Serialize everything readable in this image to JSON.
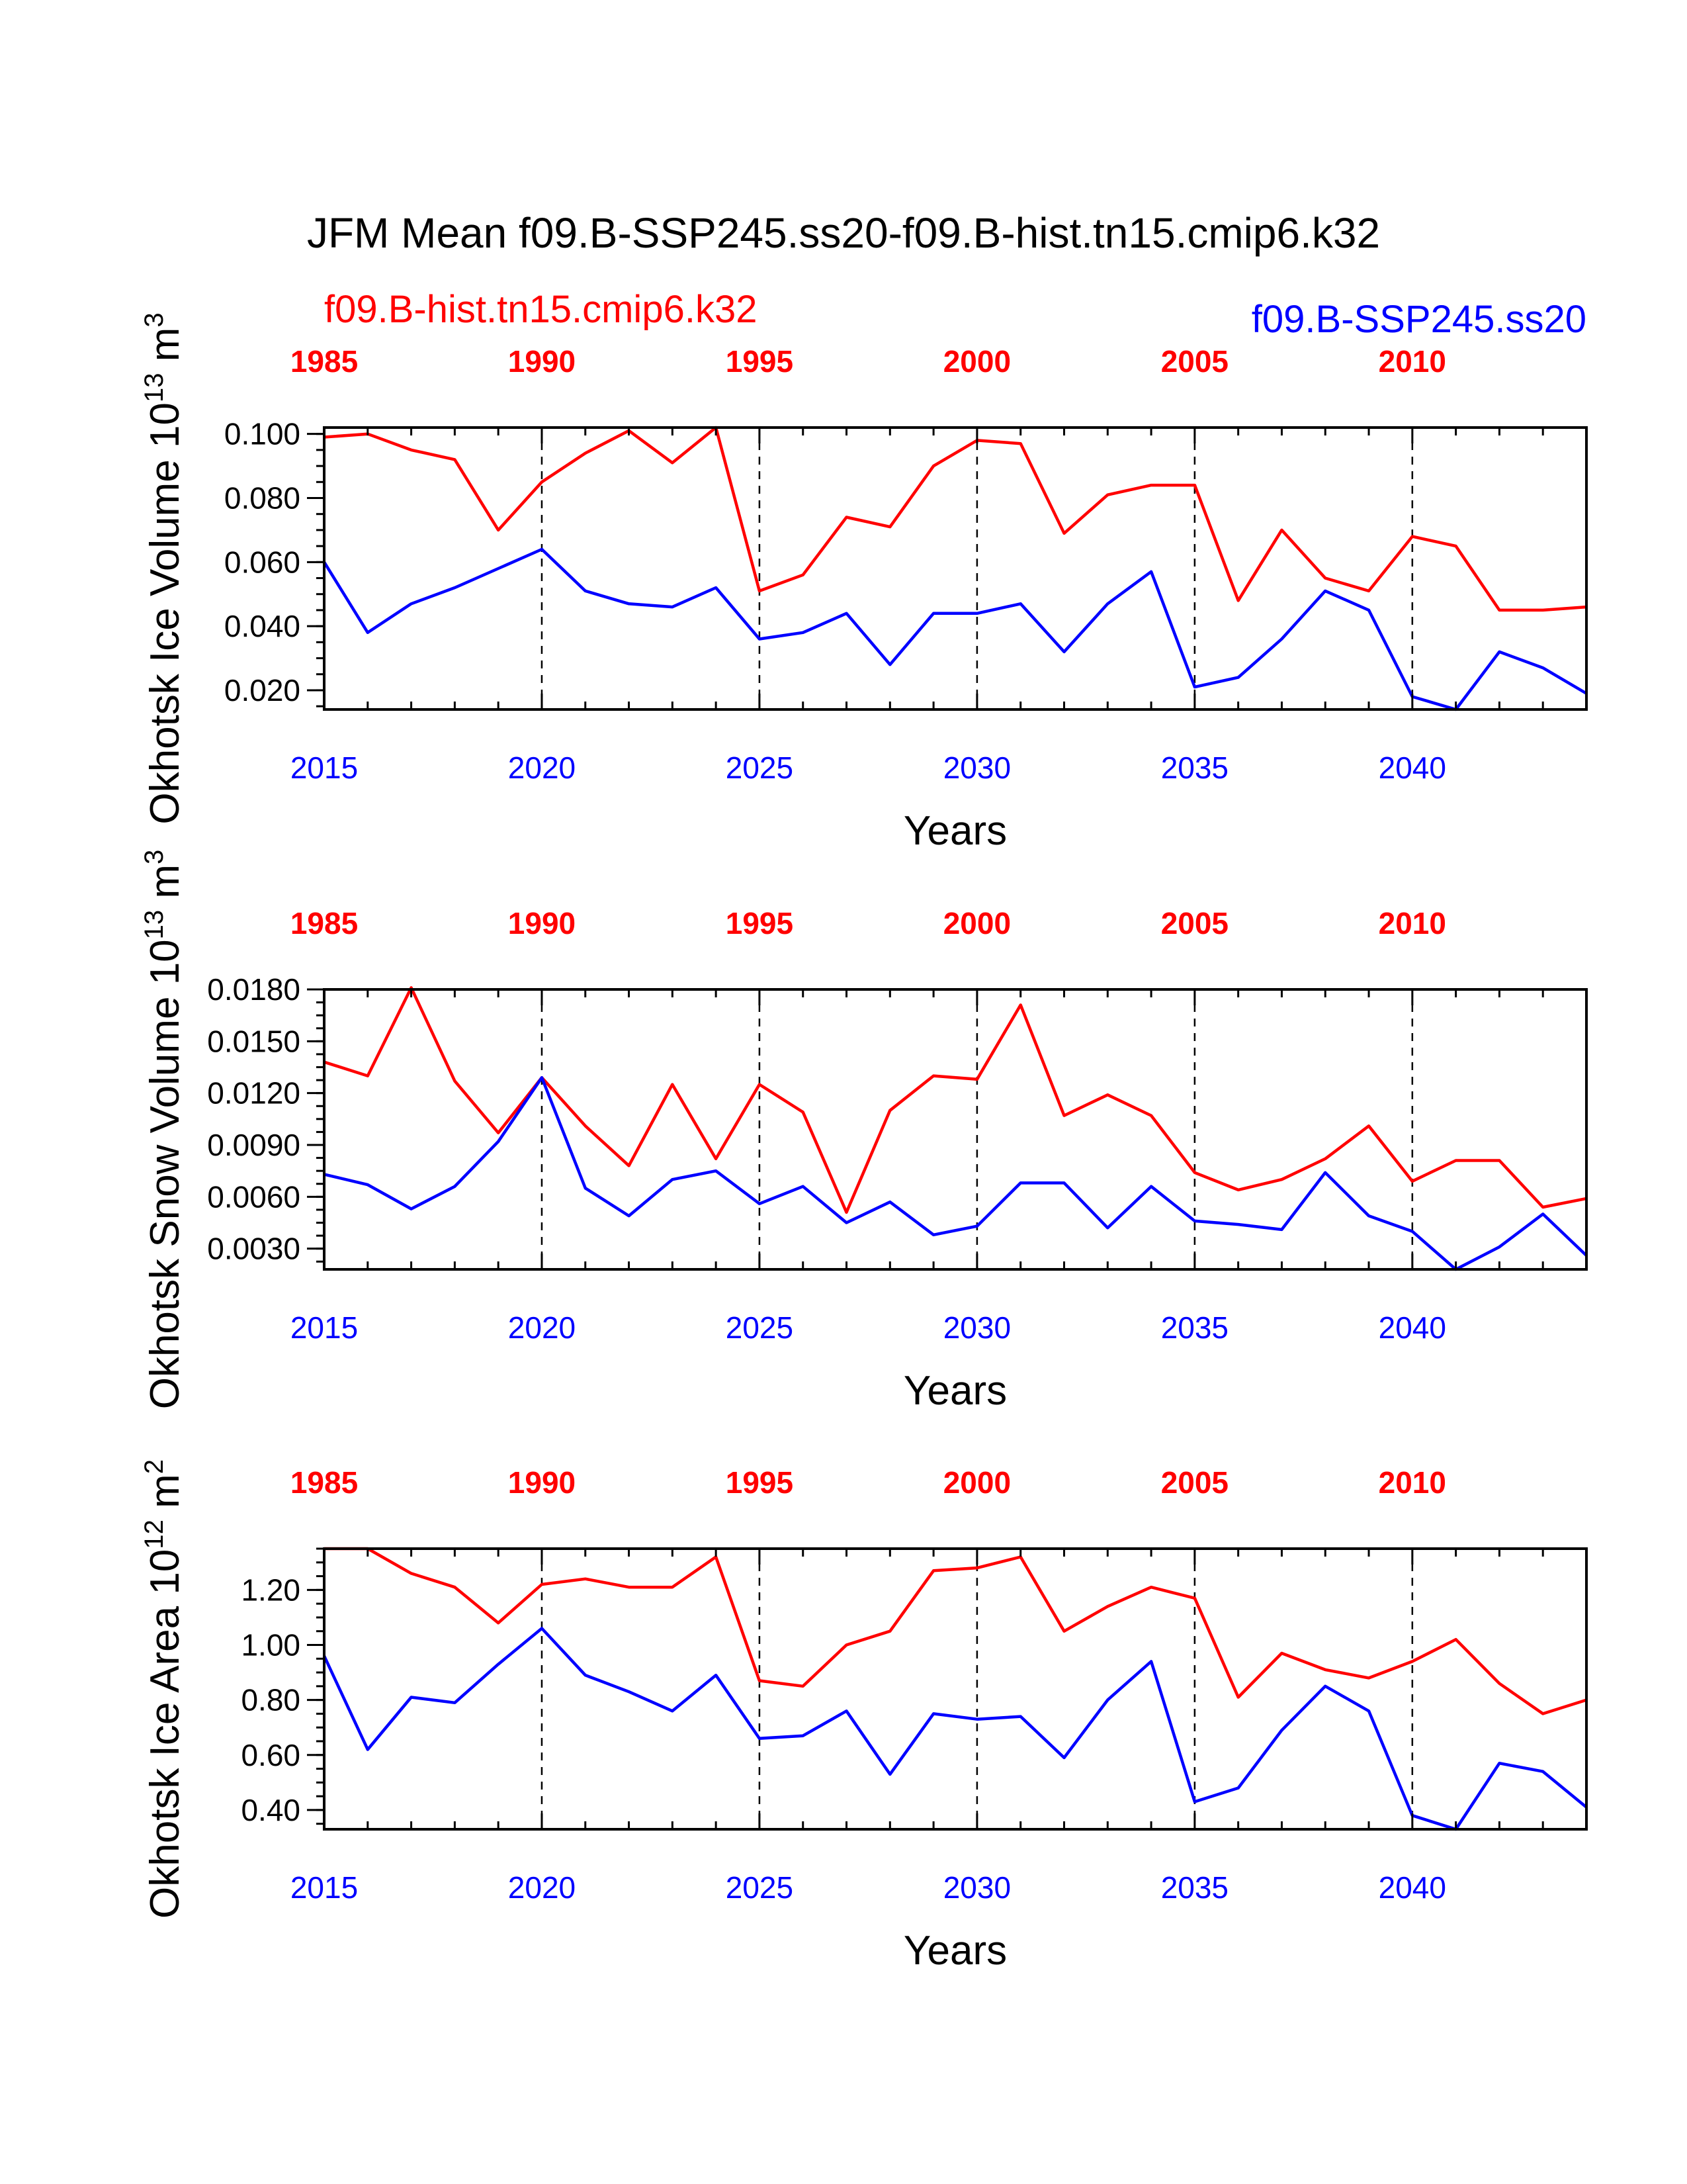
{
  "page_title": "JFM Mean f09.B-SSP245.ss20-f09.B-hist.tn15.cmip6.k32",
  "legend": {
    "hist_label": "f09.B-hist.tn15.cmip6.k32",
    "ssp_label": "f09.B-SSP245.ss20"
  },
  "colors": {
    "hist": "#ff0000",
    "ssp": "#0000ff",
    "axis": "#000000"
  },
  "chart_data": [
    {
      "type": "line",
      "ylabel": "Okhotsk Ice Volume 10^13 m^3",
      "ylabel_base": "Okhotsk Ice Volume 10",
      "ylabel_exp": "13",
      "ylabel_unit": " m",
      "ylabel_unit_exp": "3",
      "xlabel": "Years",
      "bottom_ticks": [
        "2015",
        "2020",
        "2025",
        "2030",
        "2035",
        "2040"
      ],
      "top_ticks": [
        "1985",
        "1990",
        "1995",
        "2000",
        "2005",
        "2010"
      ],
      "xlim": [
        2015,
        2044
      ],
      "ylim": [
        0.014,
        0.102
      ],
      "yticks": [
        0.02,
        0.04,
        0.06,
        0.08,
        0.1
      ],
      "ytick_labels": [
        "0.020",
        "0.040",
        "0.060",
        "0.080",
        "0.100"
      ],
      "x": [
        2015,
        2016,
        2017,
        2018,
        2019,
        2020,
        2021,
        2022,
        2023,
        2024,
        2025,
        2026,
        2027,
        2028,
        2029,
        2030,
        2031,
        2032,
        2033,
        2034,
        2035,
        2036,
        2037,
        2038,
        2039,
        2040,
        2041,
        2042,
        2043,
        2044
      ],
      "series": [
        {
          "name": "f09.B-hist.tn15.cmip6.k32",
          "color": "#ff0000",
          "values": [
            0.099,
            0.1,
            0.095,
            0.092,
            0.07,
            0.085,
            0.094,
            0.101,
            0.091,
            0.102,
            0.051,
            0.056,
            0.074,
            0.071,
            0.09,
            0.098,
            0.097,
            0.069,
            0.081,
            0.084,
            0.084,
            0.048,
            0.07,
            0.055,
            0.051,
            0.068,
            0.065,
            0.045,
            0.045,
            0.046
          ]
        },
        {
          "name": "f09.B-SSP245.ss20",
          "color": "#0000ff",
          "values": [
            0.06,
            0.038,
            0.047,
            0.052,
            0.058,
            0.064,
            0.051,
            0.047,
            0.046,
            0.052,
            0.036,
            0.038,
            0.044,
            0.028,
            0.044,
            0.044,
            0.047,
            0.032,
            0.047,
            0.057,
            0.021,
            0.024,
            0.036,
            0.051,
            0.045,
            0.018,
            0.014,
            0.032,
            0.027,
            0.019
          ]
        }
      ]
    },
    {
      "type": "line",
      "ylabel": "Okhotsk Snow Volume 10^13 m^3",
      "ylabel_base": "Okhotsk Snow Volume 10",
      "ylabel_exp": "13",
      "ylabel_unit": " m",
      "ylabel_unit_exp": "3",
      "xlabel": "Years",
      "bottom_ticks": [
        "2015",
        "2020",
        "2025",
        "2030",
        "2035",
        "2040"
      ],
      "top_ticks": [
        "1985",
        "1990",
        "1995",
        "2000",
        "2005",
        "2010"
      ],
      "xlim": [
        2015,
        2044
      ],
      "ylim": [
        0.0018,
        0.018
      ],
      "yticks": [
        0.003,
        0.006,
        0.009,
        0.012,
        0.015,
        0.018
      ],
      "ytick_labels": [
        "0.0030",
        "0.0060",
        "0.0090",
        "0.0120",
        "0.0150",
        "0.0180"
      ],
      "x": [
        2015,
        2016,
        2017,
        2018,
        2019,
        2020,
        2021,
        2022,
        2023,
        2024,
        2025,
        2026,
        2027,
        2028,
        2029,
        2030,
        2031,
        2032,
        2033,
        2034,
        2035,
        2036,
        2037,
        2038,
        2039,
        2040,
        2041,
        2042,
        2043,
        2044
      ],
      "series": [
        {
          "name": "f09.B-hist.tn15.cmip6.k32",
          "color": "#ff0000",
          "values": [
            0.0138,
            0.013,
            0.0181,
            0.0127,
            0.0097,
            0.0129,
            0.0101,
            0.0078,
            0.0125,
            0.0082,
            0.0125,
            0.0109,
            0.0051,
            0.011,
            0.013,
            0.0128,
            0.0171,
            0.0107,
            0.0119,
            0.0107,
            0.0074,
            0.0064,
            0.007,
            0.0082,
            0.0101,
            0.0069,
            0.0081,
            0.0081,
            0.0054,
            0.0059
          ]
        },
        {
          "name": "f09.B-SSP245.ss20",
          "color": "#0000ff",
          "values": [
            0.0073,
            0.0067,
            0.0053,
            0.0066,
            0.0092,
            0.0129,
            0.0065,
            0.0049,
            0.007,
            0.0075,
            0.0056,
            0.0066,
            0.0045,
            0.0057,
            0.0038,
            0.0043,
            0.0068,
            0.0068,
            0.0042,
            0.0066,
            0.0046,
            0.0044,
            0.0041,
            0.0074,
            0.0049,
            0.004,
            0.0018,
            0.0031,
            0.005,
            0.0026
          ]
        }
      ]
    },
    {
      "type": "line",
      "ylabel": "Okhotsk Ice Area 10^12 m^2",
      "ylabel_base": "Okhotsk Ice Area 10",
      "ylabel_exp": "12",
      "ylabel_unit": " m",
      "ylabel_unit_exp": "2",
      "xlabel": "Years",
      "bottom_ticks": [
        "2015",
        "2020",
        "2025",
        "2030",
        "2035",
        "2040"
      ],
      "top_ticks": [
        "1985",
        "1990",
        "1995",
        "2000",
        "2005",
        "2010"
      ],
      "xlim": [
        2015,
        2044
      ],
      "ylim": [
        0.33,
        1.35
      ],
      "yticks": [
        0.4,
        0.6,
        0.8,
        1.0,
        1.2
      ],
      "ytick_labels": [
        "0.40",
        "0.60",
        "0.80",
        "1.00",
        "1.20"
      ],
      "x": [
        2015,
        2016,
        2017,
        2018,
        2019,
        2020,
        2021,
        2022,
        2023,
        2024,
        2025,
        2026,
        2027,
        2028,
        2029,
        2030,
        2031,
        2032,
        2033,
        2034,
        2035,
        2036,
        2037,
        2038,
        2039,
        2040,
        2041,
        2042,
        2043,
        2044
      ],
      "series": [
        {
          "name": "f09.B-hist.tn15.cmip6.k32",
          "color": "#ff0000",
          "values": [
            1.35,
            1.35,
            1.26,
            1.21,
            1.08,
            1.22,
            1.24,
            1.21,
            1.21,
            1.32,
            0.87,
            0.85,
            1.0,
            1.05,
            1.27,
            1.28,
            1.32,
            1.05,
            1.14,
            1.21,
            1.17,
            0.81,
            0.97,
            0.91,
            0.88,
            0.94,
            1.02,
            0.86,
            0.75,
            0.8
          ]
        },
        {
          "name": "f09.B-SSP245.ss20",
          "color": "#0000ff",
          "values": [
            0.96,
            0.62,
            0.81,
            0.79,
            0.93,
            1.06,
            0.89,
            0.83,
            0.76,
            0.89,
            0.66,
            0.67,
            0.76,
            0.53,
            0.75,
            0.73,
            0.74,
            0.59,
            0.8,
            0.94,
            0.43,
            0.48,
            0.69,
            0.85,
            0.76,
            0.38,
            0.33,
            0.57,
            0.54,
            0.41
          ]
        }
      ]
    }
  ]
}
